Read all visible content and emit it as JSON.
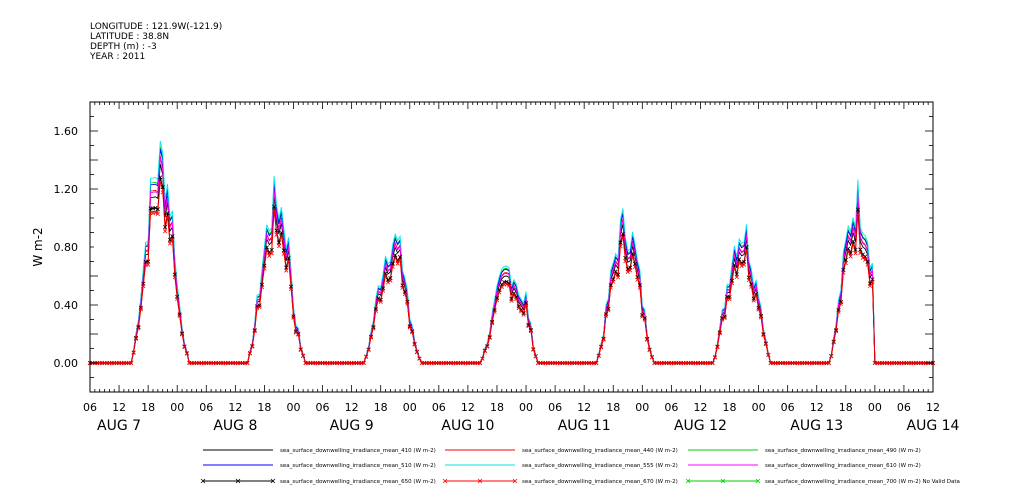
{
  "header": {
    "longitude": "LONGITUDE : 121.9W(-121.9)",
    "latitude": "LATITUDE : 38.8N",
    "depth": "DEPTH (m) : -3",
    "year": "YEAR : 2011"
  },
  "chart_data": {
    "type": "line",
    "title": "",
    "xlabel": "",
    "ylabel": "W m-2",
    "ylim": [
      -0.2,
      1.8
    ],
    "yticks": [
      0.0,
      0.4,
      0.8,
      1.2,
      1.6
    ],
    "ytick_labels": [
      "0.00",
      "0.40",
      "0.80",
      "1.20",
      "1.60"
    ],
    "x_start": "AUG 7 06:00",
    "x_end": "AUG 14 12:00",
    "xtick_hour_labels": [
      "06",
      "12",
      "18",
      "00",
      "06",
      "12",
      "18",
      "00",
      "06",
      "12",
      "18",
      "00",
      "06",
      "12",
      "18",
      "00",
      "06",
      "12",
      "18",
      "00",
      "06",
      "12",
      "18",
      "00",
      "06",
      "12",
      "18",
      "00",
      "06",
      "12"
    ],
    "date_labels": [
      "AUG  7",
      "AUG  8",
      "AUG  9",
      "AUG 10",
      "AUG 11",
      "AUG 12",
      "AUG 13",
      "AUG 14"
    ],
    "grid": false,
    "legend_position": "bottom",
    "daily_peaks": [
      {
        "day": "AUG 7",
        "peak": 1.25,
        "noon_hour": 20.5
      },
      {
        "day": "AUG 8",
        "peak": 1.0,
        "noon_hour": 20.5
      },
      {
        "day": "AUG 9",
        "peak": 0.76,
        "noon_hour": 20.5
      },
      {
        "day": "AUG 10",
        "peak": 0.58,
        "noon_hour": 20.5
      },
      {
        "day": "AUG 11",
        "peak": 0.85,
        "noon_hour": 20.5
      },
      {
        "day": "AUG 12",
        "peak": 0.82,
        "noon_hour": 20.5
      },
      {
        "day": "AUG 13",
        "peak": 1.0,
        "noon_hour": 20.5
      }
    ],
    "series": [
      {
        "name": "sea_surface_downwelling_irradiance_mean_410 (W m-2)",
        "color": "#000000",
        "scale": 1.05,
        "marker": "none"
      },
      {
        "name": "sea_surface_downwelling_irradiance_mean_440 (W m-2)",
        "color": "#ff0000",
        "scale": 1.08,
        "marker": "none"
      },
      {
        "name": "sea_surface_downwelling_irradiance_mean_490 (W m-2)",
        "color": "#00cc00",
        "scale": 1.12,
        "marker": "none"
      },
      {
        "name": "sea_surface_downwelling_irradiance_mean_510 (W m-2)",
        "color": "#0000ff",
        "scale": 1.13,
        "marker": "none"
      },
      {
        "name": "sea_surface_downwelling_irradiance_mean_555 (W m-2)",
        "color": "#00e5ee",
        "scale": 1.16,
        "marker": "none"
      },
      {
        "name": "sea_surface_downwelling_irradiance_mean_610 (W m-2)",
        "color": "#ff00ff",
        "scale": 1.06,
        "marker": "none"
      },
      {
        "name": "sea_surface_downwelling_irradiance_mean_650 (W m-2)",
        "color": "#000000",
        "scale": 0.98,
        "marker": "x"
      },
      {
        "name": "sea_surface_downwelling_irradiance_mean_670 (W m-2)",
        "color": "#ff0000",
        "scale": 0.95,
        "marker": "x"
      },
      {
        "name": "sea_surface_downwelling_irradiance_mean_700 (W m-2) No Valid Data",
        "color": "#00cc00",
        "scale": 0,
        "marker": "x"
      }
    ]
  }
}
